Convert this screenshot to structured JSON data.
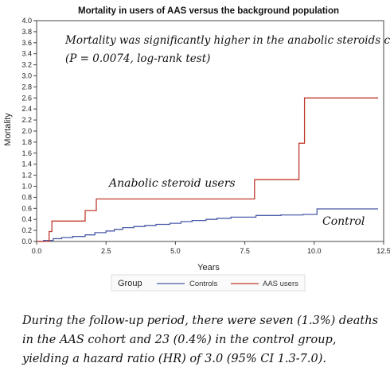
{
  "chart_data": {
    "type": "line",
    "title": "Mortality in users of AAS versus the background population",
    "xlabel": "Years",
    "ylabel": "Mortality",
    "xlim": [
      0,
      12.5
    ],
    "ylim": [
      0,
      4.0
    ],
    "xticks": [
      "0.0",
      "2.5",
      "5.0",
      "7.5",
      "10.0",
      "12.5"
    ],
    "yticks": [
      "0.0",
      "0.2",
      "0.4",
      "0.6",
      "0.8",
      "1.0",
      "1.2",
      "1.4",
      "1.6",
      "1.8",
      "2.0",
      "2.2",
      "2.4",
      "2.6",
      "2.8",
      "3.0",
      "3.2",
      "3.4",
      "3.6",
      "3.8",
      "4.0"
    ],
    "legend_title": "Group",
    "legend_position": "bottom",
    "grid": false,
    "series": [
      {
        "name": "Controls",
        "color": "#4a5aa8",
        "step": true,
        "x": [
          0,
          0.25,
          0.6,
          0.9,
          1.3,
          1.75,
          2.1,
          2.5,
          2.8,
          3.1,
          3.5,
          3.9,
          4.3,
          4.8,
          5.2,
          5.6,
          6.1,
          6.5,
          7.0,
          7.9,
          8.8,
          9.6,
          10.1,
          12.3
        ],
        "y": [
          0,
          0.02,
          0.05,
          0.07,
          0.09,
          0.12,
          0.16,
          0.19,
          0.22,
          0.25,
          0.27,
          0.29,
          0.31,
          0.33,
          0.36,
          0.38,
          0.4,
          0.42,
          0.44,
          0.47,
          0.48,
          0.49,
          0.59,
          0.59
        ]
      },
      {
        "name": "AAS users",
        "color": "#c0392b",
        "step": true,
        "x": [
          0,
          0.45,
          0.55,
          1.75,
          2.15,
          7.85,
          9.45,
          9.65,
          12.3
        ],
        "y": [
          0,
          0.18,
          0.37,
          0.56,
          0.77,
          1.12,
          1.78,
          2.6,
          2.6
        ]
      }
    ],
    "annotations": [
      "Mortality was significantly higher in the anabolic steroids cohort",
      "(P = 0.0074, log-rank test)",
      "Anabolic steroid users",
      "Control"
    ]
  },
  "caption": "During the follow-up period, there were seven (1.3%) deaths in the AAS cohort and 23 (0.4%) in the control group, yielding a hazard ratio (HR) of 3.0 (95% CI 1.3-7.0)."
}
